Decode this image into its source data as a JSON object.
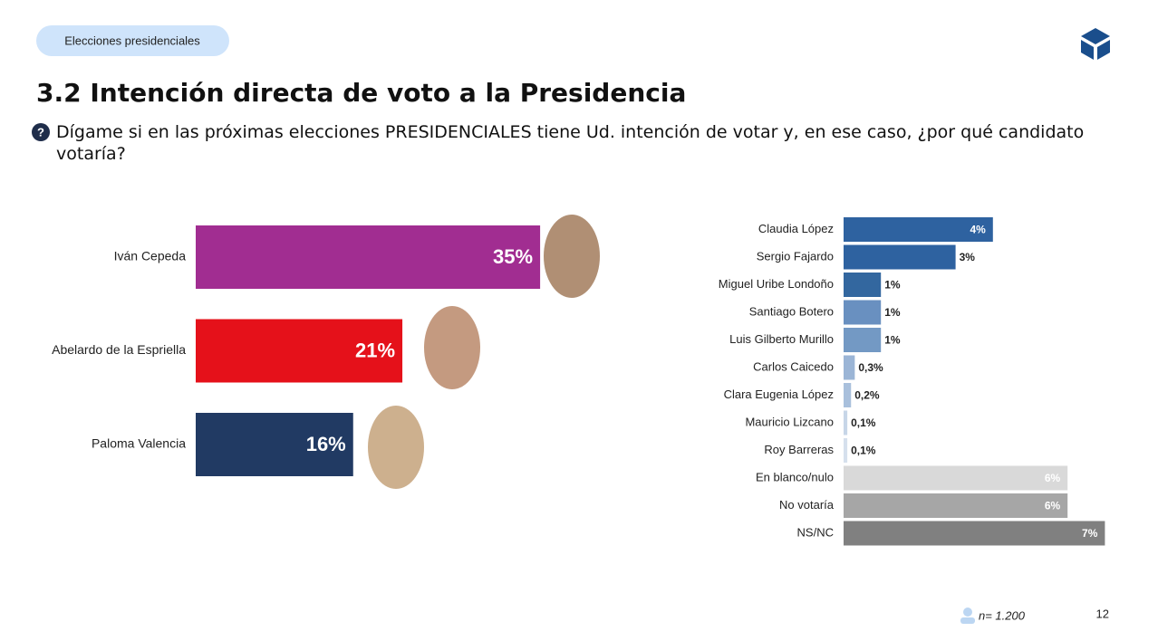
{
  "header": {
    "tag": "Elecciones presidenciales",
    "title": "3.2 Intención directa de voto a la Presidencia",
    "question": "Dígame si en las próximas elecciones PRESIDENCIALES tiene Ud. intención de votar y, en ese caso, ¿por qué candidato votaría?"
  },
  "chart_data": [
    {
      "type": "bar",
      "orientation": "horizontal",
      "categories": [
        "Iván Cepeda",
        "Abelardo de la Espriella",
        "Paloma Valencia"
      ],
      "values": [
        35,
        21,
        16
      ],
      "value_labels": [
        "35%",
        "21%",
        "16%"
      ],
      "colors": [
        "#a12d91",
        "#e5111a",
        "#213a63"
      ]
    },
    {
      "type": "bar",
      "orientation": "horizontal",
      "categories": [
        "Claudia López",
        "Sergio Fajardo",
        "Miguel Uribe Londoño",
        "Santiago Botero",
        "Luis Gilberto Murillo",
        "Carlos Caicedo",
        "Clara Eugenia López",
        "Mauricio Lizcano",
        "Roy Barreras",
        "En blanco/nulo",
        "No votaría",
        "NS/NC"
      ],
      "values": [
        4,
        3,
        1,
        1,
        1,
        0.3,
        0.2,
        0.1,
        0.1,
        6,
        6,
        7
      ],
      "value_labels": [
        "4%",
        "3%",
        "1%",
        "1%",
        "1%",
        "0,3%",
        "0,2%",
        "0,1%",
        "0,1%",
        "6%",
        "6%",
        "7%"
      ],
      "colors": [
        "#2e62a0",
        "#2e62a0",
        "#33679f",
        "#6990c0",
        "#7399c4",
        "#9bb5d6",
        "#a9c0dc",
        "#c7d6e8",
        "#d6e0ed",
        "#d9d9d9",
        "#a6a6a6",
        "#808080"
      ]
    }
  ],
  "footer": {
    "sample": "n= 1.200",
    "page": "12"
  }
}
